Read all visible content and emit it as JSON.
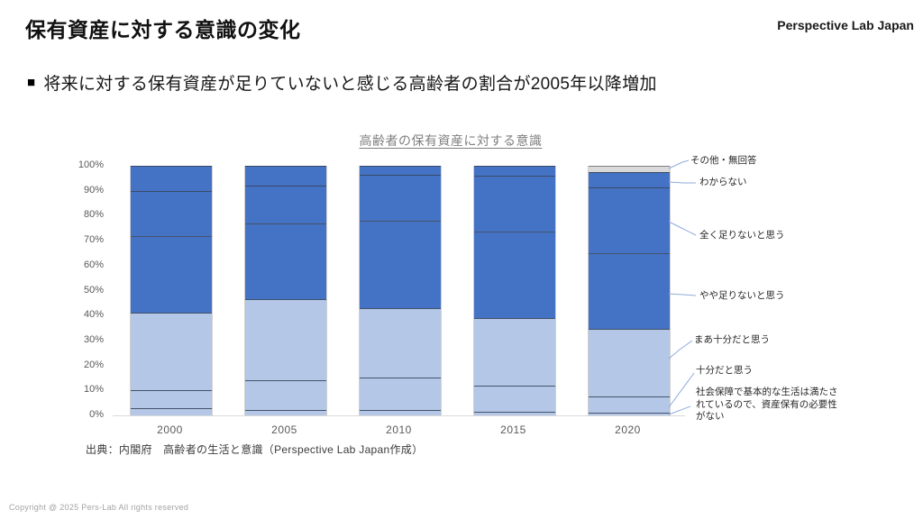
{
  "slide": {
    "title": "保有資産に対する意識の変化",
    "brand": "Perspective Lab Japan",
    "bullet_marker": "■",
    "bullet": "将来に対する保有資産が足りていないと感じる高齢者の割合が2005年以降増加",
    "source": "出典：内閣府　高齢者の生活と意識（Perspective Lab Japan作成）",
    "copyright": "Copyright @ 2025 Pers-Lab All rights reserved"
  },
  "chart_data": {
    "type": "bar",
    "stacked": true,
    "title": "高齢者の保有資産に対する意識",
    "categories": [
      "2000",
      "2005",
      "2010",
      "2015",
      "2020"
    ],
    "series": [
      {
        "name": "社会保障で基本的な生活は満たされているので、資産保有の必要性がない",
        "color": "#b4c7e7",
        "border": "#44546a",
        "values": [
          3,
          2,
          2,
          1.5,
          1
        ]
      },
      {
        "name": "十分だと思う",
        "color": "#b4c7e7",
        "border": "#44546a",
        "values": [
          7,
          12,
          13,
          10.5,
          6.5
        ]
      },
      {
        "name": "まあ十分だと思う",
        "color": "#b4c7e7",
        "border": "#44546a",
        "values": [
          31,
          32.5,
          28,
          27,
          27
        ]
      },
      {
        "name": "やや足りないと思う",
        "color": "#4472c4",
        "border": "#44546a",
        "values": [
          31,
          30.5,
          35,
          34.5,
          30.5
        ]
      },
      {
        "name": "全く足りないと思う",
        "color": "#4472c4",
        "border": "#3a4a66",
        "values": [
          18,
          15,
          18.5,
          22.5,
          26.5
        ]
      },
      {
        "name": "わからない",
        "color": "#4472c4",
        "border": "#3a4a66",
        "values": [
          10,
          8,
          3.5,
          4,
          6
        ]
      },
      {
        "name": "その他・無回答",
        "color": "#d9d9d9",
        "border": "#808080",
        "values": [
          0,
          0,
          0,
          0,
          2.5
        ]
      }
    ],
    "ylim": [
      0,
      100
    ],
    "ytick_step": 10,
    "yticks": [
      "0%",
      "10%",
      "20%",
      "30%",
      "40%",
      "50%",
      "60%",
      "70%",
      "80%",
      "90%",
      "100%"
    ],
    "grid": false,
    "legend_position": "right-callouts",
    "leader_line_color": "#8faadc"
  }
}
